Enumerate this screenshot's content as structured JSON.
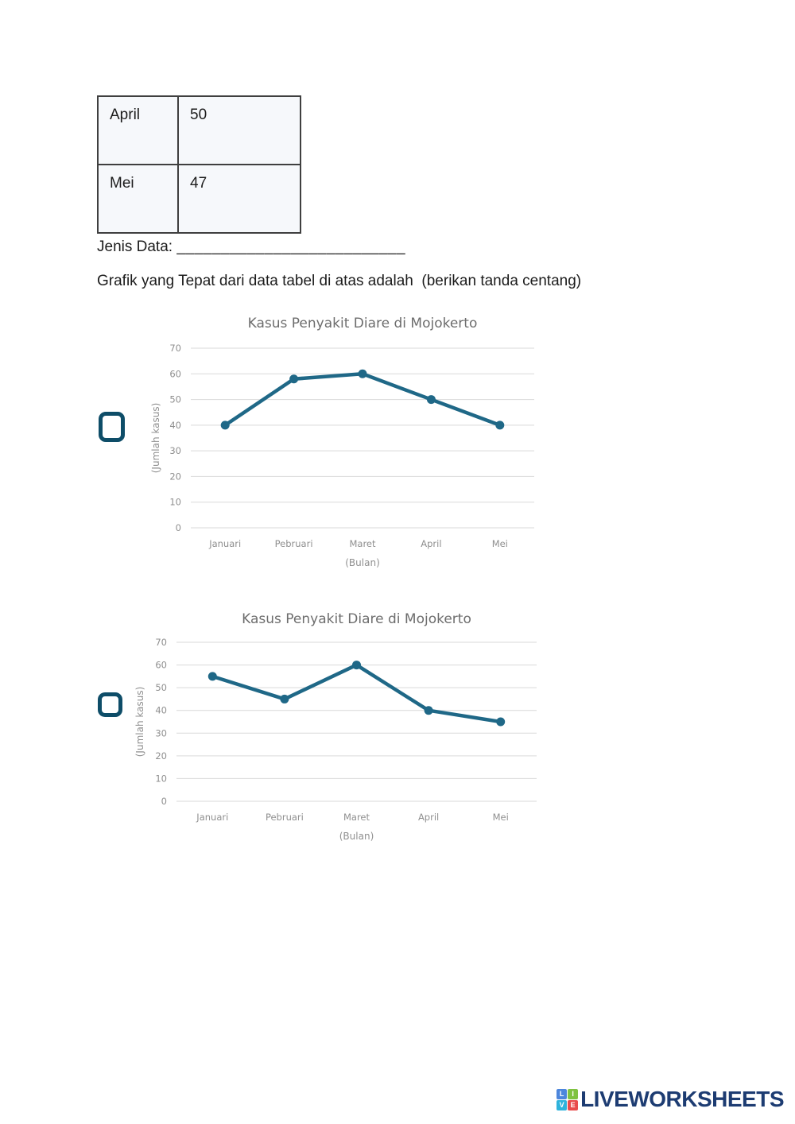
{
  "table": {
    "rows": [
      {
        "label": "April",
        "value": "50"
      },
      {
        "label": "Mei",
        "value": "47"
      }
    ]
  },
  "jenis_data": {
    "label": "Jenis Data:",
    "blank": "__________________________"
  },
  "prompt": "Grafik yang Tepat dari data tabel di atas adalah  (berikan tanda centang)",
  "answer_options": [
    {
      "checked": false
    },
    {
      "checked": false
    }
  ],
  "chart_data": [
    {
      "type": "line",
      "title": "Kasus Penyakit Diare di Mojokerto",
      "categories": [
        "Januari",
        "Pebruari",
        "Maret",
        "April",
        "Mei"
      ],
      "values": [
        40,
        58,
        60,
        50,
        40
      ],
      "xlabel": "(Bulan)",
      "ylabel": "(Jumlah kasus)",
      "ylim": [
        0,
        70
      ],
      "ytick_step": 10,
      "grid": true,
      "legend": "none"
    },
    {
      "type": "line",
      "title": "Kasus Penyakit Diare di Mojokerto",
      "categories": [
        "Januari",
        "Pebruari",
        "Maret",
        "April",
        "Mei"
      ],
      "values": [
        55,
        45,
        60,
        40,
        35
      ],
      "xlabel": "(Bulan)",
      "ylabel": "(Jumlah kasus)",
      "ylim": [
        0,
        70
      ],
      "ytick_step": 10,
      "grid": true,
      "legend": "none"
    }
  ],
  "colors": {
    "line": "#1f6887",
    "grid": "#d9d9d9",
    "tick": "#8f8f8f",
    "chart_title": "#6d6d6d",
    "checkbox_border": "#0e4d68",
    "table_border": "#3f3f3f",
    "table_bg": "#f6f8fb",
    "logo_navy": "#1d3c72"
  },
  "logo": {
    "text": "LIVEWORKSHEETS",
    "grid": [
      {
        "ch": "L",
        "color": "#4d86dc"
      },
      {
        "ch": "I",
        "color": "#7fc241"
      },
      {
        "ch": "V",
        "color": "#2fb3dc"
      },
      {
        "ch": "E",
        "color": "#e94b4b"
      }
    ]
  }
}
